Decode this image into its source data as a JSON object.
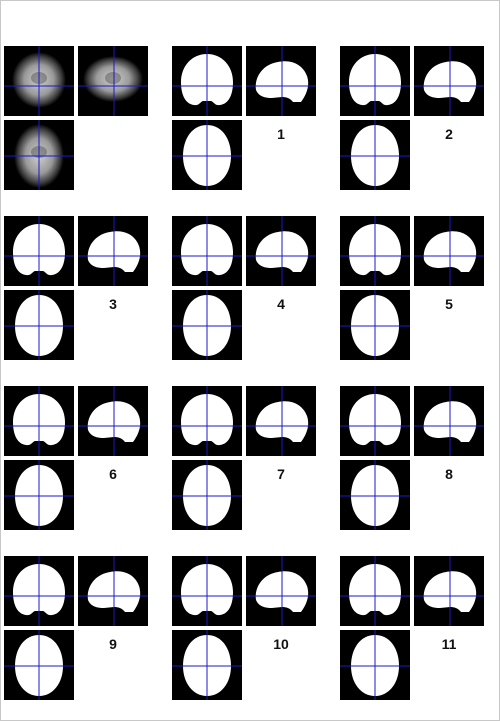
{
  "crosshair_color": "#1a1acc",
  "mask_color": "#ffffff",
  "background_color": "#000000",
  "source": {
    "id": "source",
    "views": [
      "coronal",
      "sagittal",
      "axial"
    ]
  },
  "results": [
    {
      "id": "1",
      "label": "1"
    },
    {
      "id": "2",
      "label": "2"
    },
    {
      "id": "3",
      "label": "3"
    },
    {
      "id": "4",
      "label": "4"
    },
    {
      "id": "5",
      "label": "5"
    },
    {
      "id": "6",
      "label": "6"
    },
    {
      "id": "7",
      "label": "7"
    },
    {
      "id": "8",
      "label": "8"
    },
    {
      "id": "9",
      "label": "9"
    },
    {
      "id": "10",
      "label": "10"
    },
    {
      "id": "11",
      "label": "11"
    }
  ]
}
